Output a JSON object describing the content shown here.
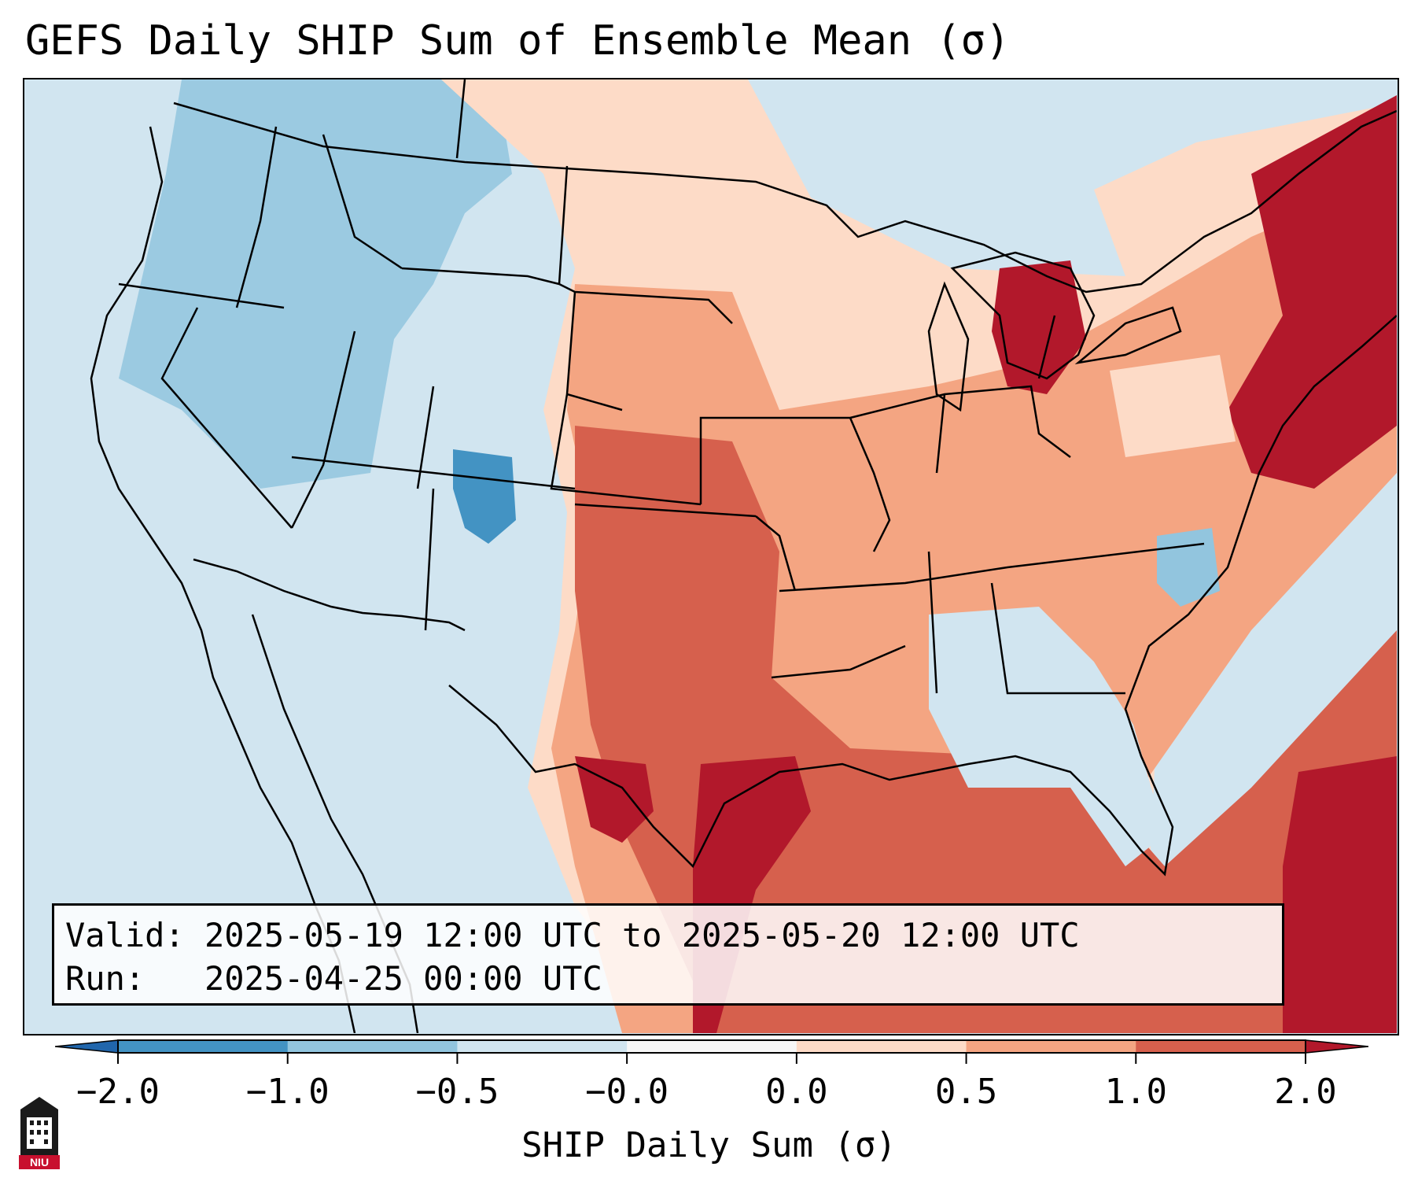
{
  "title": "GEFS Daily SHIP Sum of Ensemble Mean (σ)",
  "info": {
    "valid_label": "Valid:",
    "valid_value": "2025-05-19 12:00 UTC to 2025-05-20 12:00 UTC",
    "run_label": "Run:",
    "run_value": "2025-04-25 00:00 UTC"
  },
  "colorbar": {
    "label": "SHIP Daily Sum (σ)",
    "ticks": [
      "−2.0",
      "−1.0",
      "−0.5",
      "−0.0",
      "0.0",
      "0.5",
      "1.0",
      "2.0"
    ],
    "bin_colors": [
      "#4393c3",
      "#92c5de",
      "#d1e5f0",
      "#f7f7f7",
      "#fddbc7",
      "#f4a582",
      "#d6604d"
    ],
    "extend_min_color": "#2166ac",
    "extend_max_color": "#b2182b"
  },
  "logo": {
    "text": "NIU"
  },
  "map": {
    "background_color": "#d1e5f0",
    "line_color": "#000000"
  }
}
